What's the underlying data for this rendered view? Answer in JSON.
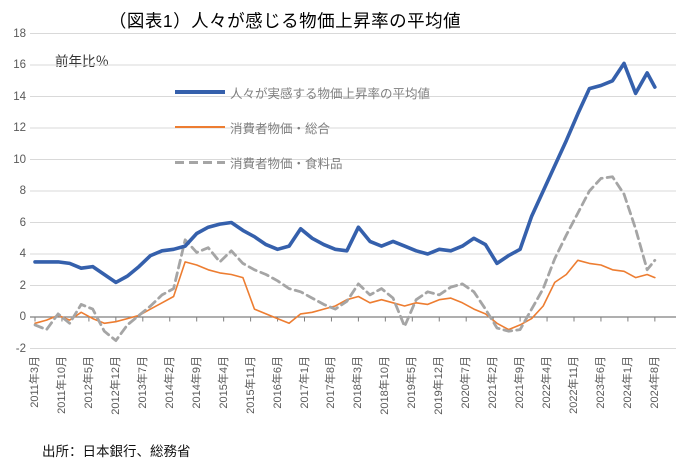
{
  "title": "（図表1）人々が感じる物価上昇率の平均値",
  "axis_unit_label": "前年比％",
  "source": "出所：日本銀行、総務省",
  "colors": {
    "survey_blue": "#3560AC",
    "cpi_orange": "#ED7D31",
    "food_gray": "#A5A5A5",
    "gridline": "#D9D9D9",
    "zero_axis": "#7F7F7F",
    "tick_label": "#595959",
    "legend_text": "#7F7F7F",
    "title_text": "#000000"
  },
  "legend": {
    "items": [
      {
        "label": "人々が実感する物価上昇率の平均値",
        "color": "#3560AC",
        "style": "solid-thick"
      },
      {
        "label": "消費者物価・総合",
        "color": "#ED7D31",
        "style": "solid-thin"
      },
      {
        "label": "消費者物価・食料品",
        "color": "#A5A5A5",
        "style": "dashed"
      }
    ]
  },
  "y_axis": {
    "ticks": [
      18,
      16,
      14,
      12,
      10,
      8,
      6,
      4,
      2,
      0,
      -2
    ],
    "min": -2,
    "max": 18
  },
  "x_axis": {
    "tick_labels": [
      "2011年3月",
      "2011年10月",
      "2012年5月",
      "2012年12月",
      "2013年7月",
      "2014年2月",
      "2014年9月",
      "2015年4月",
      "2015年11月",
      "2016年6月",
      "2017年1月",
      "2017年8月",
      "2018年3月",
      "2018年10月",
      "2019年5月",
      "2019年12月",
      "2020年7月",
      "2021年2月",
      "2021年9月",
      "2022年4月",
      "2022年11月",
      "2023年6月",
      "2024年1月",
      "2024年8月"
    ]
  },
  "chart_data": {
    "type": "line",
    "title": "（図表1）人々が感じる物価上昇率の平均値",
    "xlabel": "",
    "ylabel": "前年比％",
    "ylim": [
      -2,
      18
    ],
    "grid": true,
    "legend_position": "upper-left-inside",
    "quarters": [
      "2011-03",
      "2011-06",
      "2011-09",
      "2011-12",
      "2012-03",
      "2012-06",
      "2012-09",
      "2012-12",
      "2013-03",
      "2013-06",
      "2013-09",
      "2013-12",
      "2014-03",
      "2014-06",
      "2014-09",
      "2014-12",
      "2015-03",
      "2015-06",
      "2015-09",
      "2015-12",
      "2016-03",
      "2016-06",
      "2016-09",
      "2016-12",
      "2017-03",
      "2017-06",
      "2017-09",
      "2017-12",
      "2018-03",
      "2018-06",
      "2018-09",
      "2018-12",
      "2019-03",
      "2019-06",
      "2019-09",
      "2019-12",
      "2020-03",
      "2020-06",
      "2020-09",
      "2020-12",
      "2021-03",
      "2021-06",
      "2021-09",
      "2021-12",
      "2022-03",
      "2022-06",
      "2022-09",
      "2022-12",
      "2023-03",
      "2023-06",
      "2023-09",
      "2023-12",
      "2024-03",
      "2024-06",
      "2024-08"
    ],
    "series": [
      {
        "name": "人々が実感する物価上昇率の平均値",
        "color": "#3560AC",
        "style": "solid",
        "width": 3.6,
        "values": [
          3.5,
          3.5,
          3.5,
          3.4,
          3.1,
          3.2,
          2.7,
          2.2,
          2.6,
          3.2,
          3.9,
          4.2,
          4.3,
          4.5,
          5.3,
          5.7,
          5.9,
          6.0,
          5.5,
          5.1,
          4.6,
          4.3,
          4.5,
          5.6,
          5.0,
          4.6,
          4.3,
          4.2,
          5.7,
          4.8,
          4.5,
          4.8,
          4.5,
          4.2,
          4.0,
          4.3,
          4.2,
          4.5,
          5.0,
          4.6,
          3.4,
          3.9,
          4.3,
          6.4,
          8.0,
          9.6,
          11.2,
          12.9,
          14.5,
          14.7,
          15.0,
          16.1,
          14.2,
          15.5,
          14.6
        ]
      },
      {
        "name": "消費者物価・総合",
        "color": "#ED7D31",
        "style": "solid",
        "width": 1.6,
        "values": [
          -0.4,
          -0.2,
          0.1,
          -0.2,
          0.3,
          -0.1,
          -0.4,
          -0.3,
          -0.1,
          0.1,
          0.5,
          0.9,
          1.3,
          3.5,
          3.3,
          3.0,
          2.8,
          2.7,
          2.5,
          0.5,
          0.2,
          -0.1,
          -0.4,
          0.2,
          0.3,
          0.5,
          0.7,
          1.1,
          1.3,
          0.9,
          1.1,
          0.9,
          0.7,
          0.9,
          0.8,
          1.1,
          1.2,
          0.9,
          0.5,
          0.2,
          -0.4,
          -0.8,
          -0.5,
          -0.1,
          0.7,
          2.2,
          2.7,
          3.6,
          3.4,
          3.3,
          3.0,
          2.9,
          2.5,
          2.7,
          2.5
        ]
      },
      {
        "name": "消費者物価・食料品",
        "color": "#A5A5A5",
        "style": "dashed",
        "width": 2.8,
        "values": [
          -0.5,
          -0.8,
          0.2,
          -0.4,
          0.8,
          0.5,
          -0.9,
          -1.5,
          -0.5,
          0.1,
          0.7,
          1.4,
          1.8,
          4.9,
          4.1,
          4.4,
          3.5,
          4.2,
          3.4,
          3.0,
          2.7,
          2.3,
          1.8,
          1.6,
          1.2,
          0.8,
          0.5,
          1.0,
          2.1,
          1.4,
          1.8,
          1.2,
          -0.6,
          1.1,
          1.6,
          1.4,
          1.9,
          2.1,
          1.6,
          0.5,
          -0.7,
          -0.9,
          -0.8,
          0.5,
          1.8,
          3.7,
          5.2,
          6.6,
          8.0,
          8.8,
          8.9,
          7.8,
          5.6,
          3.0,
          3.6
        ]
      }
    ]
  }
}
